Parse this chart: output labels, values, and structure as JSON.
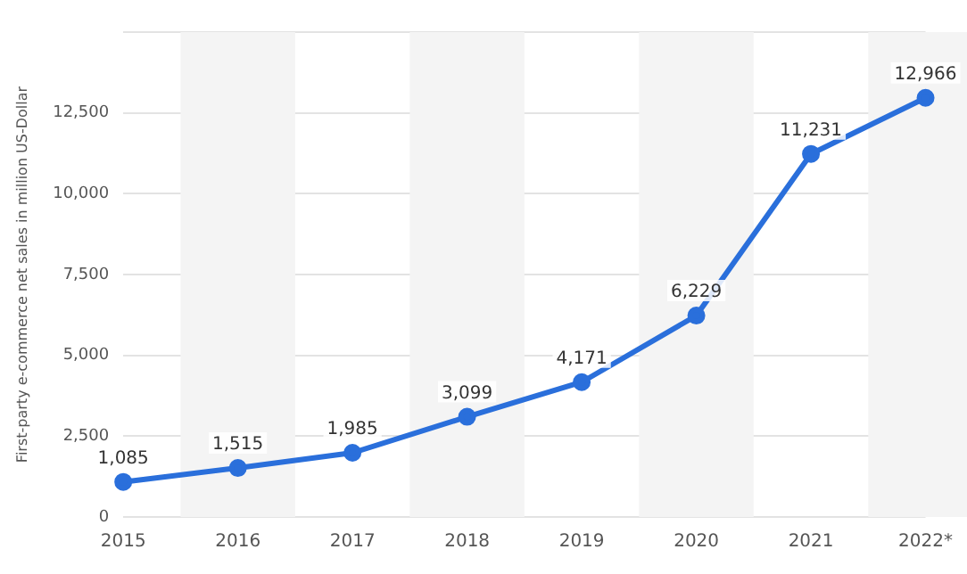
{
  "chart_data": {
    "type": "line",
    "ylabel": "First-party e-commerce net sales in million US-Dollar",
    "categories": [
      "2015",
      "2016",
      "2017",
      "2018",
      "2019",
      "2020",
      "2021",
      "2022*"
    ],
    "series": [
      {
        "color": "#2a6fdb",
        "values": [
          1085,
          1515,
          1985,
          3099,
          4171,
          6229,
          11231,
          12966
        ],
        "value_labels": [
          "1,085",
          "1,515",
          "1,985",
          "3,099",
          "4,171",
          "6,229",
          "11,231",
          "12,966"
        ]
      }
    ],
    "ylim": [
      0,
      15000
    ],
    "yticks": [
      0,
      {
        "value": 2500,
        "label": "2,500"
      },
      {
        "value": 5000,
        "label": "5,000"
      },
      {
        "value": 7500,
        "label": "7,500"
      },
      {
        "value": 10000,
        "label": "10,000"
      },
      {
        "value": 12500,
        "label": "12,500"
      },
      {
        "value": 15000,
        "label": null
      }
    ],
    "bands": [
      {
        "axis": "x",
        "from": "2016",
        "to": "2016",
        "color": "#f4f4f4"
      },
      {
        "axis": "x",
        "from": "2018",
        "to": "2018",
        "color": "#f4f4f4"
      },
      {
        "axis": "x",
        "from": "2020",
        "to": "2020",
        "color": "#f4f4f4"
      },
      {
        "axis": "x",
        "from": "2022*",
        "to": "2022*",
        "color": "#f4f4f4"
      }
    ],
    "grid": "y",
    "legend": false,
    "marker": "circle",
    "line_style": "solid"
  }
}
